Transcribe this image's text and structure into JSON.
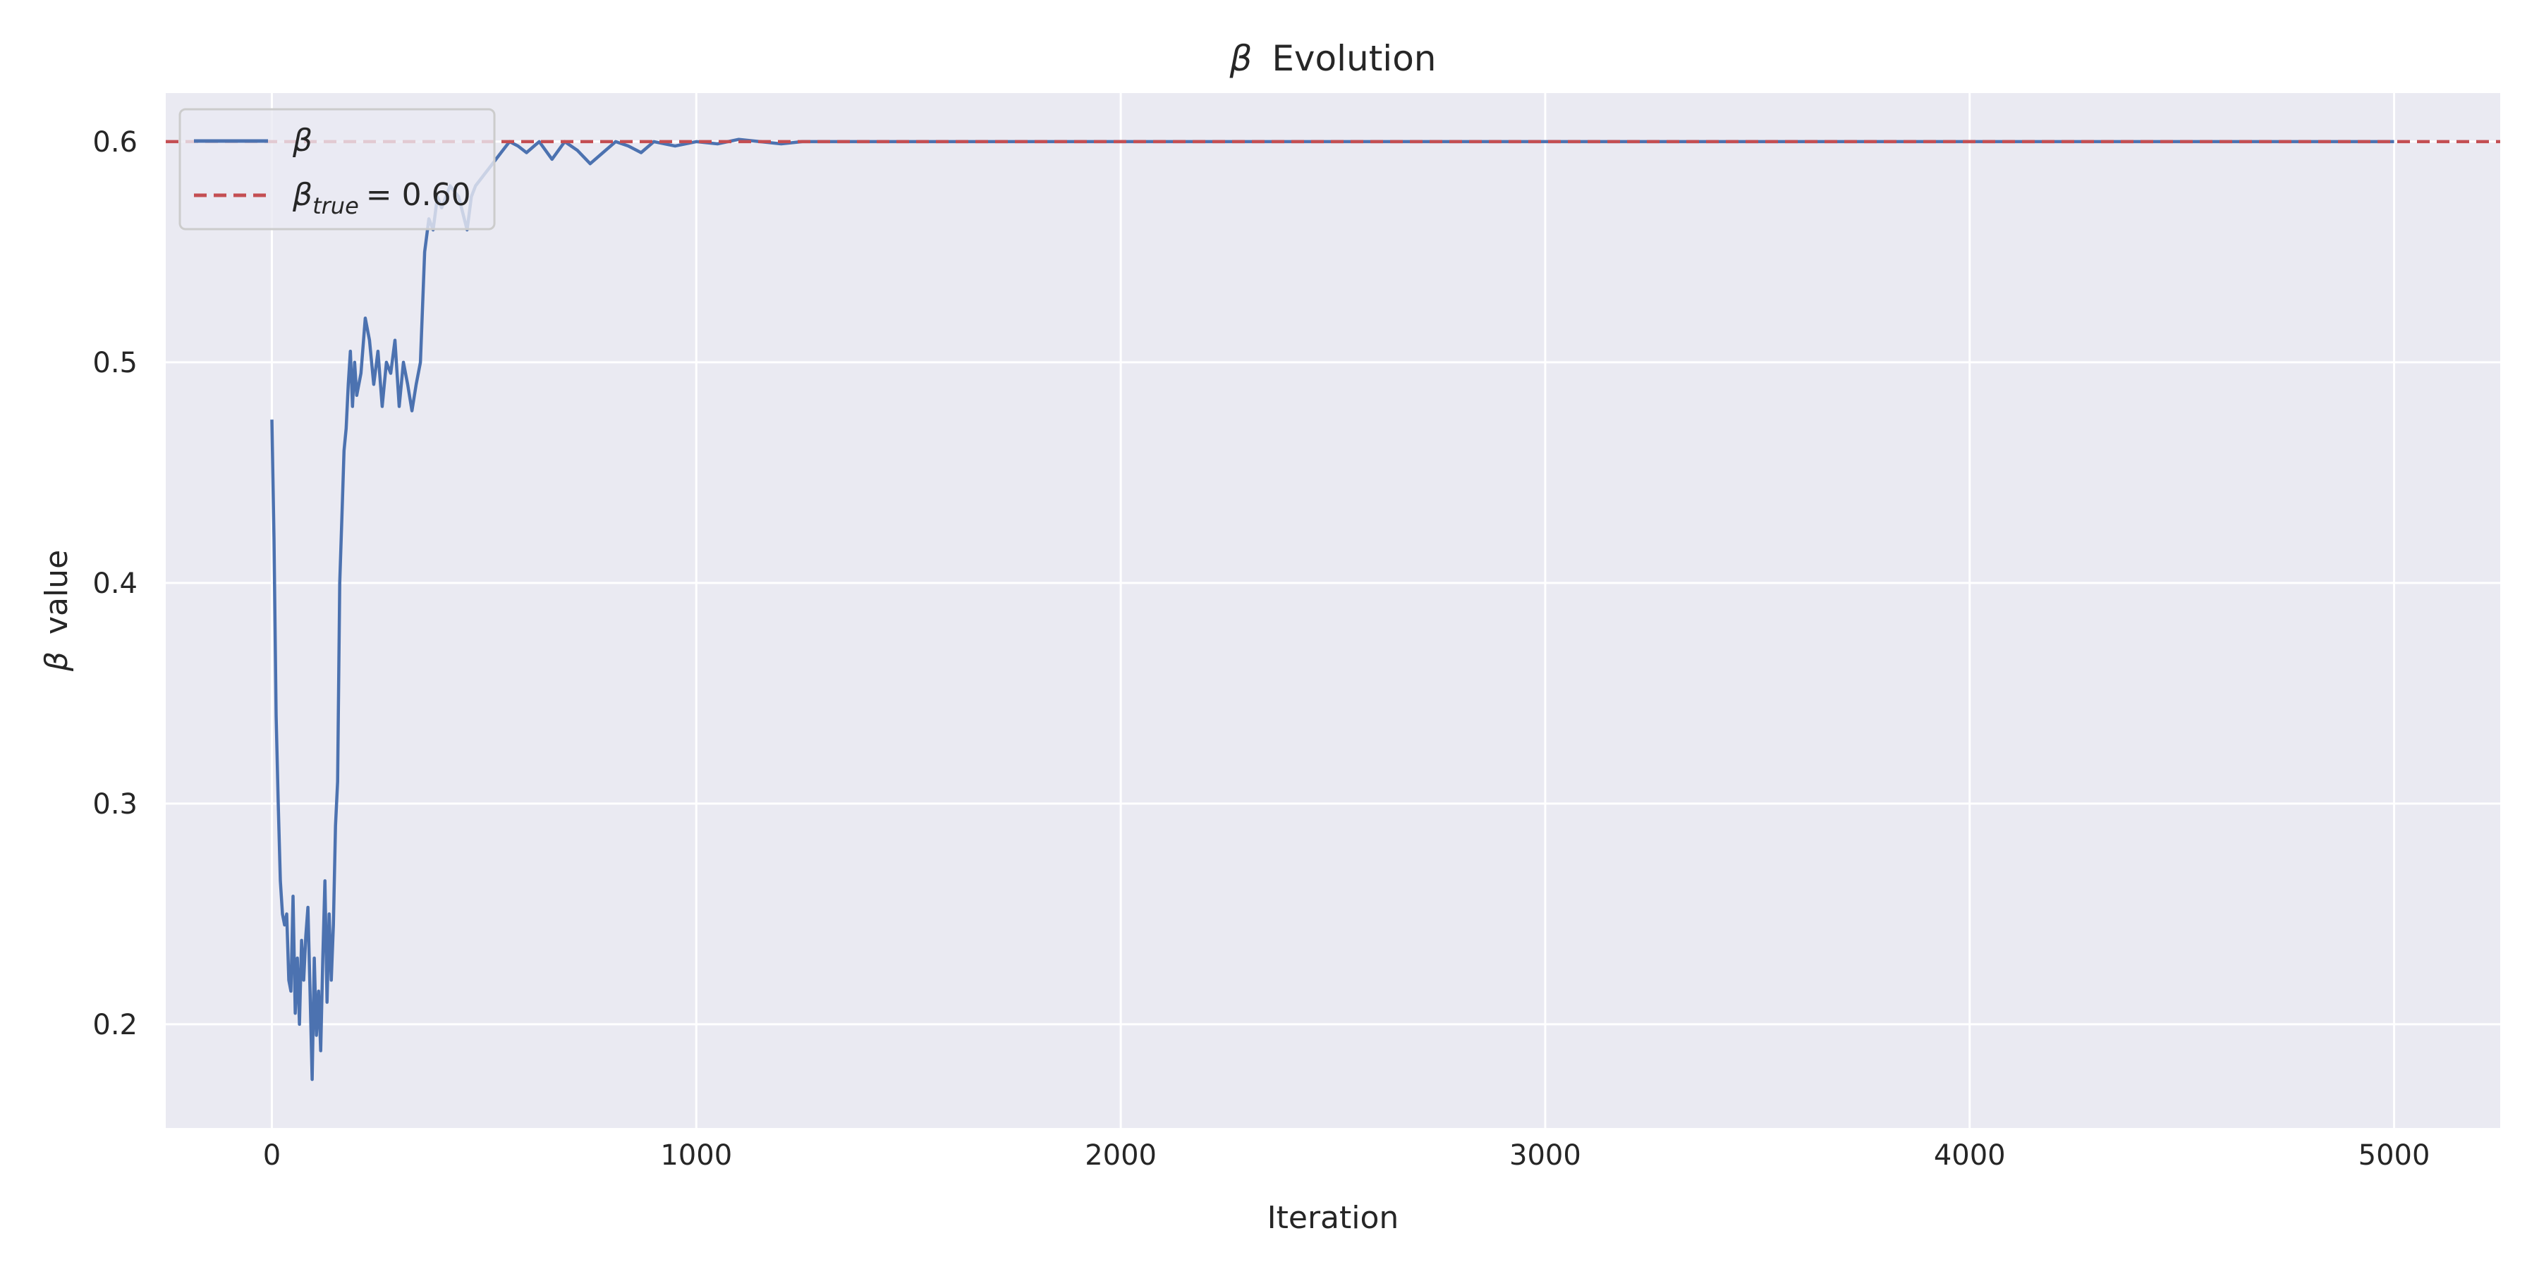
{
  "chart_data": {
    "type": "line",
    "title": {
      "symbol": "β",
      "text": "Evolution"
    },
    "xlabel": "Iteration",
    "ylabel": {
      "symbol": "β",
      "text": "value"
    },
    "xlim": [
      -250,
      5250
    ],
    "ylim": [
      0.153,
      0.622
    ],
    "xticks": [
      0,
      1000,
      2000,
      3000,
      4000,
      5000
    ],
    "yticks": [
      0.2,
      0.3,
      0.4,
      0.5,
      0.6
    ],
    "xtick_labels": [
      "0",
      "1000",
      "2000",
      "3000",
      "4000",
      "5000"
    ],
    "ytick_labels": [
      "0.2",
      "0.3",
      "0.4",
      "0.5",
      "0.6"
    ],
    "grid": true,
    "legend_position": "top-left",
    "colors": {
      "background": "#eaeaf2",
      "grid": "#ffffff",
      "series": "#4c72b0",
      "reference": "#c44e52"
    },
    "legend": [
      {
        "symbol": "β",
        "style": "solid",
        "color": "#4c72b0"
      },
      {
        "symbol": "β",
        "subscript": "true",
        "text": "= 0.60",
        "style": "dashed",
        "color": "#c44e52"
      }
    ],
    "reference_line": {
      "y": 0.6,
      "style": "dashed",
      "color": "#c44e52"
    },
    "series": [
      {
        "color": "#4c72b0",
        "x": [
          0,
          5,
          10,
          15,
          20,
          25,
          30,
          35,
          40,
          45,
          50,
          55,
          60,
          65,
          70,
          75,
          80,
          85,
          90,
          95,
          100,
          105,
          110,
          115,
          120,
          125,
          130,
          135,
          140,
          145,
          150,
          155,
          160,
          165,
          170,
          175,
          180,
          185,
          190,
          195,
          200,
          210,
          220,
          230,
          240,
          250,
          260,
          270,
          280,
          290,
          300,
          310,
          320,
          330,
          340,
          350,
          360,
          370,
          380,
          390,
          400,
          420,
          440,
          460,
          470,
          480,
          500,
          520,
          540,
          560,
          580,
          600,
          630,
          660,
          690,
          720,
          750,
          780,
          810,
          840,
          870,
          900,
          950,
          1000,
          1050,
          1100,
          1150,
          1200,
          1250,
          1300,
          1400,
          1500,
          1700,
          2000,
          2500,
          3000,
          3500,
          4000,
          4500,
          5000
        ],
        "values": [
          0.474,
          0.42,
          0.34,
          0.3,
          0.265,
          0.25,
          0.245,
          0.25,
          0.22,
          0.215,
          0.258,
          0.205,
          0.23,
          0.2,
          0.238,
          0.22,
          0.24,
          0.253,
          0.215,
          0.175,
          0.23,
          0.195,
          0.215,
          0.188,
          0.23,
          0.265,
          0.21,
          0.25,
          0.22,
          0.245,
          0.29,
          0.31,
          0.4,
          0.43,
          0.46,
          0.47,
          0.49,
          0.505,
          0.48,
          0.5,
          0.485,
          0.495,
          0.52,
          0.51,
          0.49,
          0.505,
          0.48,
          0.5,
          0.495,
          0.51,
          0.48,
          0.5,
          0.49,
          0.478,
          0.49,
          0.5,
          0.55,
          0.565,
          0.56,
          0.575,
          0.57,
          0.58,
          0.575,
          0.56,
          0.575,
          0.58,
          0.585,
          0.59,
          0.595,
          0.6,
          0.598,
          0.595,
          0.6,
          0.592,
          0.6,
          0.596,
          0.59,
          0.595,
          0.6,
          0.598,
          0.595,
          0.6,
          0.598,
          0.6,
          0.599,
          0.601,
          0.6,
          0.599,
          0.6,
          0.6,
          0.6,
          0.6,
          0.6,
          0.6,
          0.6,
          0.6,
          0.6,
          0.6,
          0.6,
          0.6
        ]
      }
    ]
  }
}
